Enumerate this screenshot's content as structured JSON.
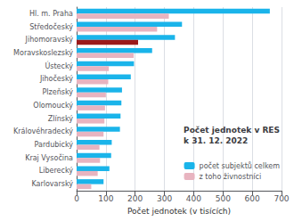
{
  "chart_data": {
    "type": "bar",
    "orientation": "horizontal",
    "title": "Počet jednotek v RES\nk 31. 12. 2022",
    "xlabel": "Počet jednotek (v tisících)",
    "categories": [
      "Hl. m. Praha",
      "Středočeský",
      "Jihomoravský",
      "Moravskoslezský",
      "Ústecký",
      "Jihočeský",
      "Plzeňský",
      "Olomoucký",
      "Zlínský",
      "Královéhradecký",
      "Pardubický",
      "Kraj Vysočina",
      "Liberecký",
      "Karlovarský"
    ],
    "series": [
      {
        "name": "počet subjektů celkem",
        "color": "#1ab4ea",
        "values": [
          660,
          360,
          336,
          258,
          196,
          185,
          155,
          153,
          150,
          148,
          120,
          118,
          112,
          92
        ]
      },
      {
        "name": "z toho živnostníci",
        "color": "#e8b4c0",
        "colors": [
          "#e8b4c0",
          "#e8b4c0",
          "#9b1a1a",
          "#e8b4c0",
          "#e8b4c0",
          "#e8b4c0",
          "#e8b4c0",
          "#e8b4c0",
          "#e8b4c0",
          "#e8b4c0",
          "#e8b4c0",
          "#e8b4c0",
          "#e8b4c0",
          "#e8b4c0"
        ],
        "values": [
          315,
          275,
          210,
          195,
          110,
          108,
          100,
          97,
          95,
          92,
          78,
          80,
          72,
          50
        ]
      }
    ],
    "xlim": [
      0,
      700
    ],
    "xticks": [
      0,
      100,
      200,
      300,
      400,
      500,
      600,
      700
    ],
    "grid": true,
    "legend": "lower right"
  }
}
